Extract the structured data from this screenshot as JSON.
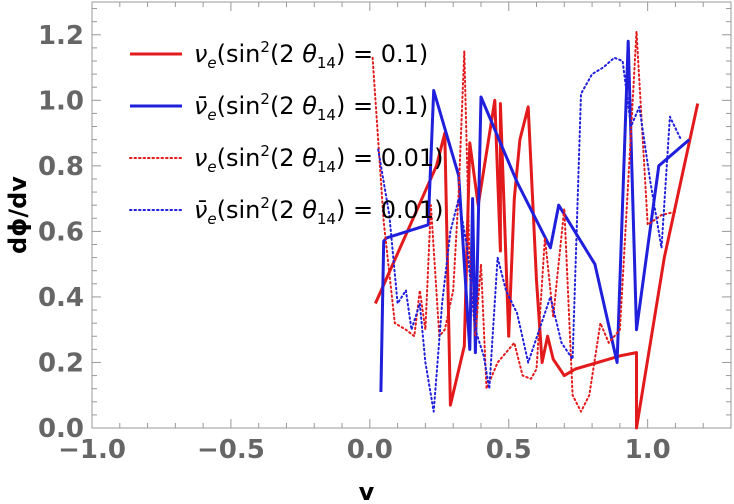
{
  "chart_data": {
    "type": "line",
    "title": "",
    "xlabel": "v",
    "ylabel": "dϕ/dv",
    "xlim": [
      -1.0,
      1.3
    ],
    "ylim": [
      0.0,
      1.3
    ],
    "xticks": [
      -1.0,
      -0.5,
      0.0,
      0.5,
      1.0
    ],
    "xtick_labels": [
      "−1.0",
      "−0.5",
      "0.0",
      "0.5",
      "1.0"
    ],
    "yticks": [
      0.0,
      0.2,
      0.4,
      0.6,
      0.8,
      1.0,
      1.2
    ],
    "ytick_labels": [
      "0.0",
      "0.2",
      "0.4",
      "0.6",
      "0.8",
      "1.0",
      "1.2"
    ],
    "grid": false,
    "legend_position": "top-left",
    "series": [
      {
        "name": "νe(sin²(2 θ14) = 0.1)",
        "particle": "ν",
        "value_text": "0.1",
        "color": "#e31a1c",
        "style": "solid",
        "x": [
          0.02,
          0.24,
          0.27,
          0.29,
          0.34,
          0.36,
          0.39,
          0.45,
          0.47,
          0.47,
          0.5,
          0.52,
          0.54,
          0.57,
          0.6,
          0.62,
          0.64,
          0.66,
          0.7,
          0.74,
          0.9,
          0.96,
          0.96,
          1.06,
          1.18
        ],
        "y": [
          0.38,
          0.8,
          0.9,
          0.07,
          0.25,
          0.87,
          0.68,
          1.0,
          0.54,
          0.99,
          0.28,
          0.7,
          0.88,
          0.98,
          0.45,
          0.2,
          0.28,
          0.21,
          0.16,
          0.18,
          0.22,
          0.23,
          0.0,
          0.52,
          0.99
        ]
      },
      {
        "name": "ν̄e(sin²(2 θ14) = 0.1)",
        "particle": "ν̄",
        "value_text": "0.1",
        "color": "#1f1fdc",
        "style": "solid",
        "x": [
          0.04,
          0.05,
          0.06,
          0.21,
          0.23,
          0.32,
          0.36,
          0.37,
          0.38,
          0.4,
          0.53,
          0.65,
          0.68,
          0.81,
          0.89,
          0.93,
          0.96,
          1.04,
          1.15
        ],
        "y": [
          0.11,
          0.57,
          0.58,
          0.62,
          1.03,
          0.77,
          0.24,
          0.7,
          0.23,
          1.01,
          0.75,
          0.55,
          0.68,
          0.5,
          0.2,
          1.18,
          0.3,
          0.8,
          0.88
        ]
      },
      {
        "name": "νe(sin²(2 θ14) = 0.01)",
        "particle": "ν",
        "value_text": "0.01",
        "color": "#e31a1c",
        "style": "dotted",
        "x": [
          0.01,
          0.05,
          0.09,
          0.13,
          0.16,
          0.18,
          0.2,
          0.22,
          0.25,
          0.27,
          0.3,
          0.32,
          0.34,
          0.36,
          0.38,
          0.4,
          0.42,
          0.44,
          0.46,
          0.48,
          0.52,
          0.55,
          0.58,
          0.6,
          0.63,
          0.66,
          0.7,
          0.73,
          0.76,
          0.79,
          0.83,
          0.86,
          0.9,
          0.93,
          0.96,
          1.0,
          1.05,
          1.1
        ],
        "y": [
          1.13,
          0.63,
          0.32,
          0.3,
          0.28,
          0.42,
          0.3,
          0.68,
          0.28,
          0.3,
          0.42,
          0.72,
          1.15,
          0.48,
          0.28,
          0.5,
          0.12,
          0.16,
          0.2,
          0.22,
          0.26,
          0.16,
          0.15,
          0.18,
          0.58,
          0.34,
          0.67,
          0.1,
          0.05,
          0.1,
          0.32,
          0.26,
          0.3,
          0.75,
          1.21,
          0.62,
          0.65,
          0.66
        ]
      },
      {
        "name": "ν̄e(sin²(2 θ14) = 0.01)",
        "particle": "ν̄",
        "value_text": "0.01",
        "color": "#1f1fdc",
        "style": "dotted",
        "x": [
          0.03,
          0.07,
          0.1,
          0.13,
          0.15,
          0.18,
          0.2,
          0.23,
          0.26,
          0.29,
          0.32,
          0.35,
          0.38,
          0.41,
          0.43,
          0.46,
          0.49,
          0.53,
          0.57,
          0.61,
          0.65,
          0.69,
          0.73,
          0.76,
          0.8,
          0.84,
          0.88,
          0.91,
          0.94,
          0.97,
          1.01,
          1.05,
          1.08,
          1.12
        ],
        "y": [
          0.85,
          0.65,
          0.38,
          0.42,
          0.3,
          0.38,
          0.2,
          0.05,
          0.38,
          0.6,
          0.7,
          0.55,
          0.3,
          0.22,
          0.12,
          0.52,
          0.42,
          0.35,
          0.2,
          0.3,
          0.4,
          0.26,
          0.21,
          1.02,
          1.08,
          1.1,
          1.13,
          1.12,
          0.92,
          0.98,
          0.75,
          0.55,
          0.95,
          0.88
        ]
      }
    ]
  }
}
